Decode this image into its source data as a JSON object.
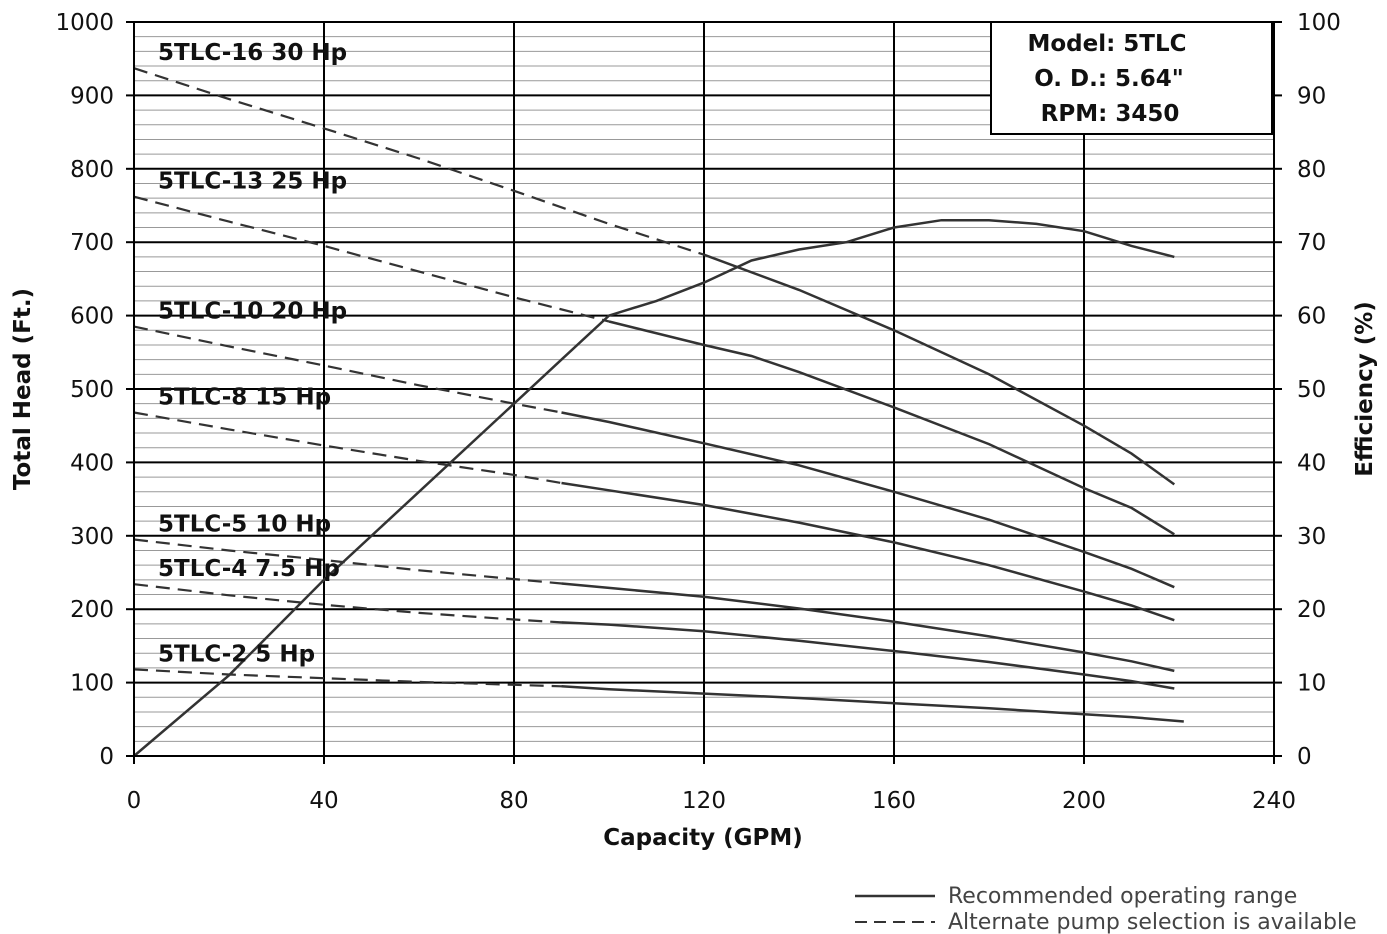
{
  "chart_data": {
    "type": "line",
    "xlabel": "Capacity (GPM)",
    "ylabel": "Total Head (Ft.)",
    "y2label": "Efficiency (%)",
    "xlim": [
      0,
      240
    ],
    "ylim": [
      0,
      1000
    ],
    "y2lim": [
      0,
      100
    ],
    "x_ticks": [
      "0",
      "40",
      "80",
      "120",
      "160",
      "200",
      "240"
    ],
    "y_ticks": [
      "0",
      "100",
      "200",
      "300",
      "400",
      "500",
      "600",
      "700",
      "800",
      "900",
      "1000"
    ],
    "y2_ticks": [
      "0",
      "10",
      "20",
      "30",
      "40",
      "50",
      "60",
      "70",
      "80",
      "90",
      "100"
    ],
    "grid": true,
    "model_box": {
      "lines": [
        "Model: 5TLC",
        "O. D.: 5.64\"",
        "RPM: 3450"
      ]
    },
    "series": [
      {
        "name": "5TLC-16 30 Hp",
        "axis": "left",
        "dashed_until": 120,
        "points": [
          [
            0,
            937
          ],
          [
            20,
            895
          ],
          [
            40,
            855
          ],
          [
            60,
            814
          ],
          [
            80,
            770
          ],
          [
            100,
            725
          ],
          [
            120,
            683
          ],
          [
            140,
            635
          ],
          [
            160,
            580
          ],
          [
            180,
            520
          ],
          [
            200,
            450
          ],
          [
            210,
            412
          ],
          [
            219,
            370
          ]
        ]
      },
      {
        "name": "5TLC-13 25 Hp",
        "axis": "left",
        "dashed_until": 100,
        "points": [
          [
            0,
            762
          ],
          [
            20,
            728
          ],
          [
            40,
            695
          ],
          [
            60,
            660
          ],
          [
            80,
            625
          ],
          [
            100,
            592
          ],
          [
            120,
            560
          ],
          [
            130,
            545
          ],
          [
            140,
            523
          ],
          [
            160,
            475
          ],
          [
            180,
            425
          ],
          [
            200,
            365
          ],
          [
            210,
            338
          ],
          [
            219,
            302
          ]
        ]
      },
      {
        "name": "5TLC-10 20 Hp",
        "axis": "left",
        "dashed_until": 90,
        "points": [
          [
            0,
            585
          ],
          [
            20,
            558
          ],
          [
            40,
            532
          ],
          [
            60,
            505
          ],
          [
            80,
            480
          ],
          [
            90,
            468
          ],
          [
            100,
            455
          ],
          [
            120,
            426
          ],
          [
            140,
            396
          ],
          [
            160,
            360
          ],
          [
            180,
            322
          ],
          [
            200,
            278
          ],
          [
            210,
            255
          ],
          [
            219,
            230
          ]
        ]
      },
      {
        "name": "5TLC-8 15 Hp",
        "axis": "left",
        "dashed_until": 90,
        "points": [
          [
            0,
            468
          ],
          [
            20,
            445
          ],
          [
            40,
            423
          ],
          [
            60,
            402
          ],
          [
            80,
            383
          ],
          [
            90,
            372
          ],
          [
            100,
            362
          ],
          [
            120,
            342
          ],
          [
            140,
            318
          ],
          [
            160,
            291
          ],
          [
            180,
            260
          ],
          [
            200,
            224
          ],
          [
            210,
            205
          ],
          [
            219,
            185
          ]
        ]
      },
      {
        "name": "5TLC-5 10 Hp",
        "axis": "left",
        "dashed_until": 90,
        "points": [
          [
            0,
            295
          ],
          [
            20,
            280
          ],
          [
            40,
            267
          ],
          [
            60,
            253
          ],
          [
            80,
            241
          ],
          [
            90,
            235
          ],
          [
            100,
            229
          ],
          [
            120,
            217
          ],
          [
            140,
            201
          ],
          [
            160,
            183
          ],
          [
            180,
            163
          ],
          [
            200,
            141
          ],
          [
            210,
            129
          ],
          [
            219,
            116
          ]
        ]
      },
      {
        "name": "5TLC-4 7.5 Hp",
        "axis": "left",
        "dashed_until": 90,
        "points": [
          [
            0,
            234
          ],
          [
            20,
            219
          ],
          [
            40,
            206
          ],
          [
            60,
            195
          ],
          [
            80,
            186
          ],
          [
            90,
            182
          ],
          [
            100,
            179
          ],
          [
            120,
            170
          ],
          [
            140,
            157
          ],
          [
            160,
            143
          ],
          [
            180,
            128
          ],
          [
            200,
            111
          ],
          [
            210,
            102
          ],
          [
            219,
            92
          ]
        ]
      },
      {
        "name": "5TLC-2 5 Hp",
        "axis": "left",
        "dashed_until": 90,
        "points": [
          [
            0,
            118
          ],
          [
            20,
            111
          ],
          [
            40,
            106
          ],
          [
            60,
            101
          ],
          [
            80,
            97
          ],
          [
            90,
            95
          ],
          [
            100,
            91
          ],
          [
            120,
            85
          ],
          [
            140,
            79
          ],
          [
            160,
            72
          ],
          [
            180,
            65
          ],
          [
            200,
            57
          ],
          [
            210,
            53
          ],
          [
            221,
            47
          ]
        ]
      },
      {
        "name": "Efficiency",
        "axis": "right",
        "dashed_until": null,
        "points": [
          [
            0,
            0
          ],
          [
            20,
            11
          ],
          [
            40,
            24
          ],
          [
            60,
            36
          ],
          [
            80,
            48
          ],
          [
            90,
            54
          ],
          [
            100,
            60
          ],
          [
            110,
            62
          ],
          [
            120,
            64.5
          ],
          [
            130,
            67.5
          ],
          [
            140,
            69
          ],
          [
            150,
            70
          ],
          [
            160,
            72
          ],
          [
            170,
            73
          ],
          [
            180,
            73
          ],
          [
            190,
            72.5
          ],
          [
            200,
            71.5
          ],
          [
            210,
            69.5
          ],
          [
            219,
            68
          ]
        ]
      }
    ],
    "legend": [
      {
        "style": "solid",
        "label": "Recommended operating range"
      },
      {
        "style": "dashed",
        "label": "Alternate pump selection is available"
      }
    ],
    "colors": {
      "line": "#333333",
      "grid_major": "#000000",
      "grid_minor": "#999999"
    }
  }
}
